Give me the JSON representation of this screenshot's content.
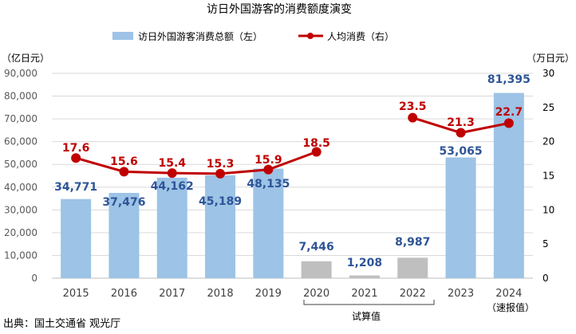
{
  "chart_data": {
    "type": "bar+line",
    "title": "访日外国游客的消费额度演变",
    "categories": [
      "2015",
      "2016",
      "2017",
      "2018",
      "2019",
      "2020",
      "2021",
      "2022",
      "2023",
      "2024"
    ],
    "category_sublabels": {
      "2024": "（速报值）"
    },
    "bracket_label": "试算值",
    "bracket_categories": [
      "2020",
      "2021",
      "2022"
    ],
    "series": [
      {
        "name": "访日外国游客消费总额（左）",
        "type": "bar",
        "axis": "left",
        "values": [
          34771,
          37476,
          44162,
          45189,
          48135,
          7446,
          1208,
          8987,
          53065,
          81395
        ],
        "labels": [
          "34,771",
          "37,476",
          "44,162",
          "45,189",
          "48,135",
          "7,446",
          "1,208",
          "8,987",
          "53,065",
          "81,395"
        ]
      },
      {
        "name": "人均消费（右）",
        "type": "line",
        "axis": "right",
        "values": [
          17.6,
          15.6,
          15.4,
          15.3,
          15.9,
          18.5,
          null,
          23.5,
          21.3,
          22.7
        ],
        "labels": [
          "17.6",
          "15.6",
          "15.4",
          "15.3",
          "15.9",
          "18.5",
          "",
          "23.5",
          "21.3",
          "22.7"
        ]
      }
    ],
    "left_axis": {
      "unit_label": "（亿日元）",
      "ylim": [
        0,
        90000
      ],
      "ticks": [
        "0",
        "10,000",
        "20,000",
        "30,000",
        "40,000",
        "50,000",
        "60,000",
        "70,000",
        "80,000",
        "90,000"
      ]
    },
    "right_axis": {
      "unit_label": "（万日元）",
      "ylim": [
        0,
        30
      ],
      "ticks": [
        "0",
        "5",
        "10",
        "15",
        "20",
        "25",
        "30"
      ]
    },
    "grid": true,
    "legend_placement": "top-center",
    "colors": {
      "bar": "#9DC3E6",
      "bar_estimate": "#BFBFBF",
      "line": "#C00000",
      "bar_label": "#2E5597",
      "line_label": "#C00000"
    }
  },
  "source": "出典：国土交通省 观光厅"
}
